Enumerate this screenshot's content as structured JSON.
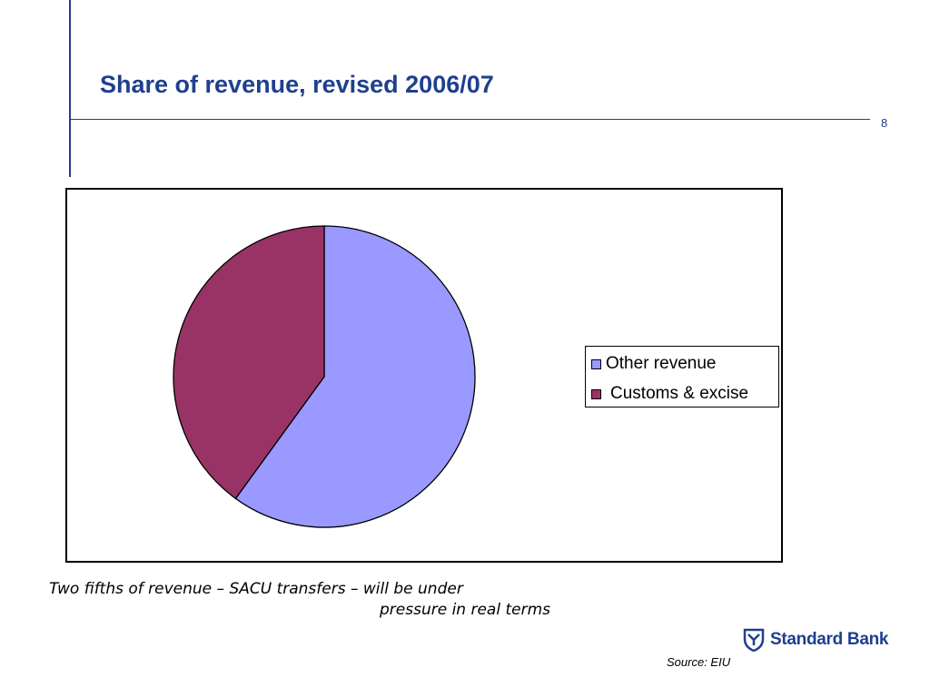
{
  "slide": {
    "title": "Share of revenue, revised 2006/07",
    "page_number": "8",
    "caption_line1": "Two fifths of revenue – SACU transfers – will be under",
    "caption_line2": "pressure in real terms",
    "source": "Source: EIU",
    "brand": "Standard Bank",
    "brand_color": "#1f3f8f"
  },
  "chart_data": {
    "type": "pie",
    "title": "",
    "legend_position": "right",
    "slices": [
      {
        "label": "Other revenue",
        "value": 60,
        "color": "#9999ff"
      },
      {
        "label": "Customs & excise",
        "value": 40,
        "color": "#993366"
      }
    ]
  }
}
